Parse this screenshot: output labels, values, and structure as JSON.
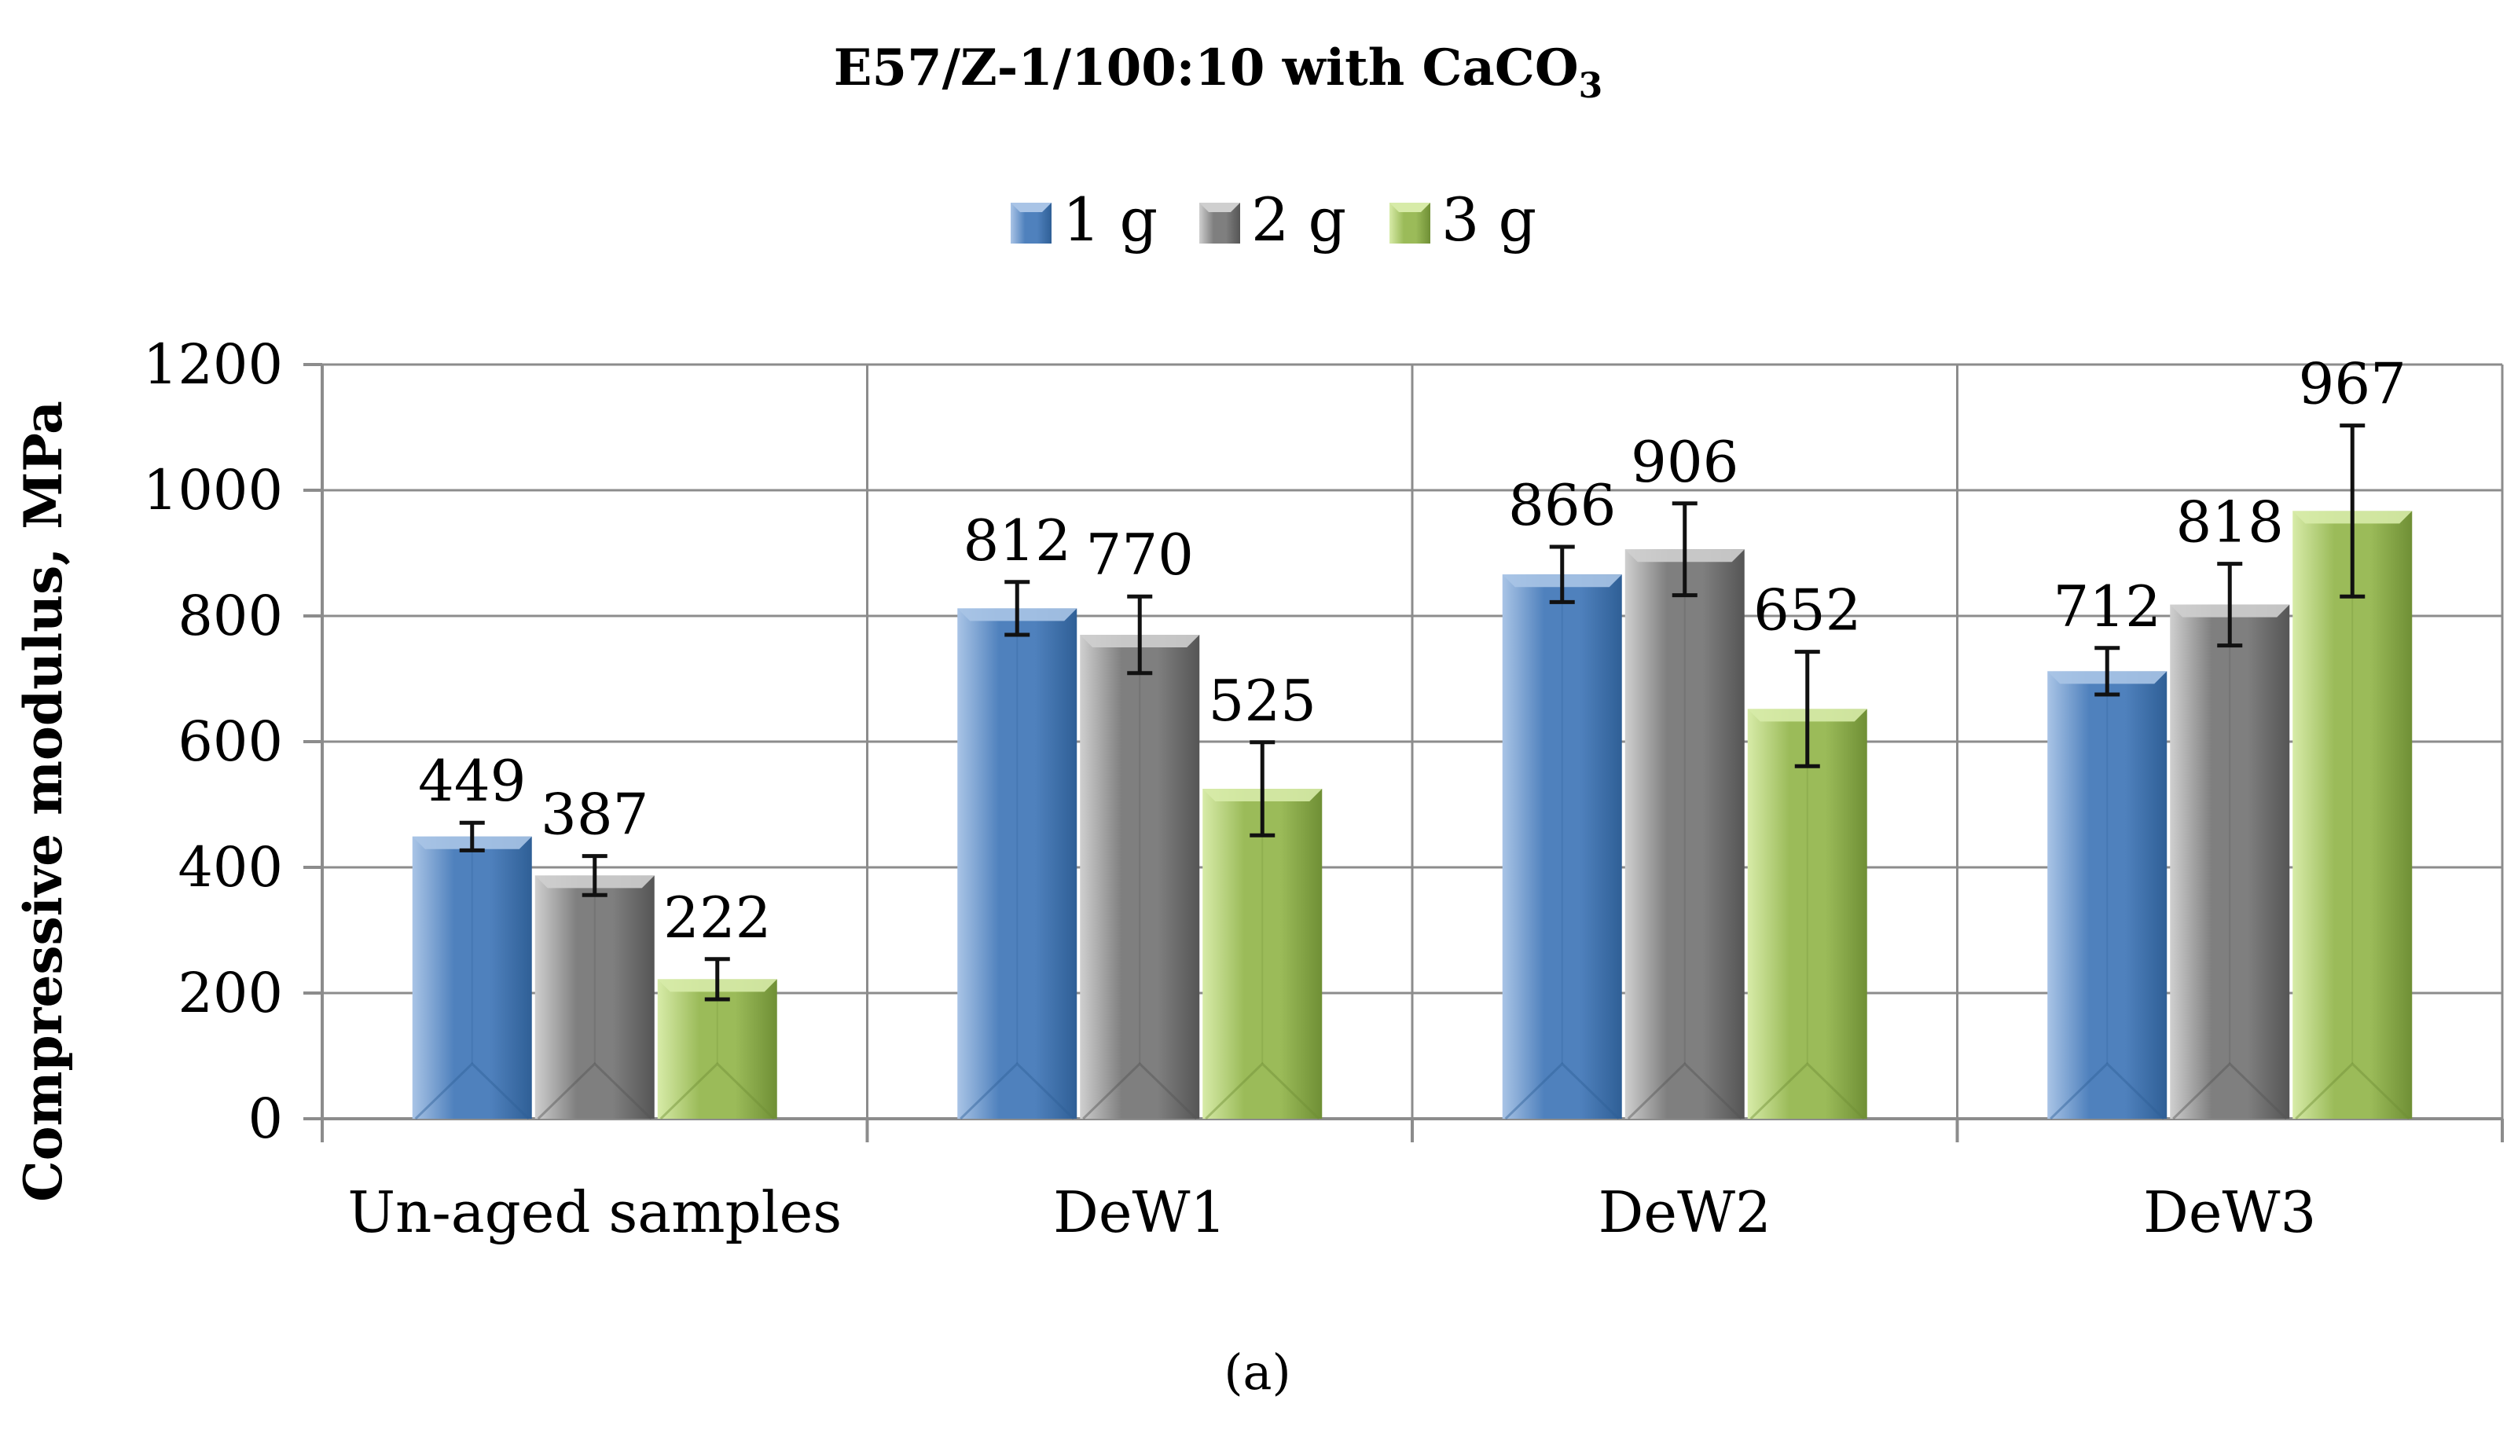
{
  "caption": "(a)",
  "colors": {
    "series": [
      "#4f81bd",
      "#7f7f7f",
      "#9bbb59"
    ],
    "series_light": [
      "#a9c4e6",
      "#cfcfcf",
      "#d7eba8"
    ],
    "series_dark": [
      "#2f5f96",
      "#555555",
      "#6f8f35"
    ],
    "grid": "#8c8c8c",
    "text": "#000000"
  },
  "chart_data": {
    "type": "bar",
    "title_main": "E57/Z-1/100:10 with CaCO",
    "title_sub": "3",
    "xlabel": "",
    "ylabel": "Compressive modulus, MPa",
    "categories": [
      "Un-aged samples",
      "DeW1",
      "DeW2",
      "DeW3"
    ],
    "ylim": [
      0,
      1200
    ],
    "yticks": [
      0,
      200,
      400,
      600,
      800,
      1000,
      1200
    ],
    "grid": true,
    "legend": "top-center",
    "series": [
      {
        "name": "1 g",
        "values": [
          449,
          812,
          866,
          712
        ],
        "errors": [
          22,
          42,
          44,
          37
        ],
        "labels": [
          "449",
          "812",
          "866",
          "712"
        ]
      },
      {
        "name": "2 g",
        "values": [
          387,
          770,
          906,
          818
        ],
        "errors": [
          31,
          61,
          73,
          65
        ],
        "labels": [
          "387",
          "770",
          "906",
          "818"
        ]
      },
      {
        "name": "3 g",
        "values": [
          222,
          525,
          652,
          967
        ],
        "errors": [
          32,
          74,
          91,
          136
        ],
        "labels": [
          "222",
          "525",
          "652",
          "967"
        ]
      }
    ]
  }
}
